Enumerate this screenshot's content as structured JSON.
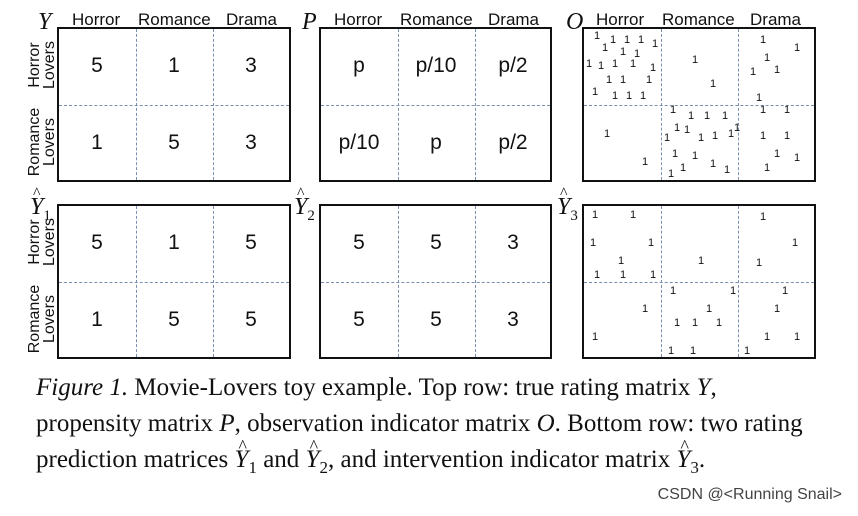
{
  "columns": [
    "Horror",
    "Romance",
    "Drama"
  ],
  "rows": [
    {
      "line1": "Horror",
      "line2": "Lovers"
    },
    {
      "line1": "Romance",
      "line2": "Lovers"
    }
  ],
  "labels": {
    "Y": "Y",
    "P": "P",
    "O": "O",
    "Y1": "Y",
    "Y1_sub": "1",
    "Y2": "Y",
    "Y2_sub": "2",
    "Y3": "Y",
    "Y3_sub": "3"
  },
  "matrices": {
    "Y": [
      [
        "5",
        "1",
        "3"
      ],
      [
        "1",
        "5",
        "3"
      ]
    ],
    "P": [
      [
        "p",
        "p/10",
        "p/2"
      ],
      [
        "p/10",
        "p",
        "p/2"
      ]
    ],
    "Y1": [
      [
        "5",
        "1",
        "5"
      ],
      [
        "1",
        "5",
        "5"
      ]
    ],
    "Y2": [
      [
        "5",
        "5",
        "3"
      ],
      [
        "5",
        "5",
        "3"
      ]
    ]
  },
  "obs_value": "1",
  "caption": {
    "fig": "Figure 1.",
    "t1": " Movie-Lovers toy example. Top row: true rating matrix ",
    "v1": "Y",
    "t2": ", propensity matrix ",
    "v2": "P",
    "t3": ", observation indicator matrix ",
    "v3": "O",
    "t4": ". Bottom row: two rating prediction matrices ",
    "v4": "Y",
    "s4": "1",
    "t5": " and ",
    "v5": "Y",
    "s5": "2",
    "t6": ", and intervention indicator matrix ",
    "v6": "Y",
    "s6": "3",
    "t7": "."
  },
  "watermark": "CSDN @<Running Snail>"
}
